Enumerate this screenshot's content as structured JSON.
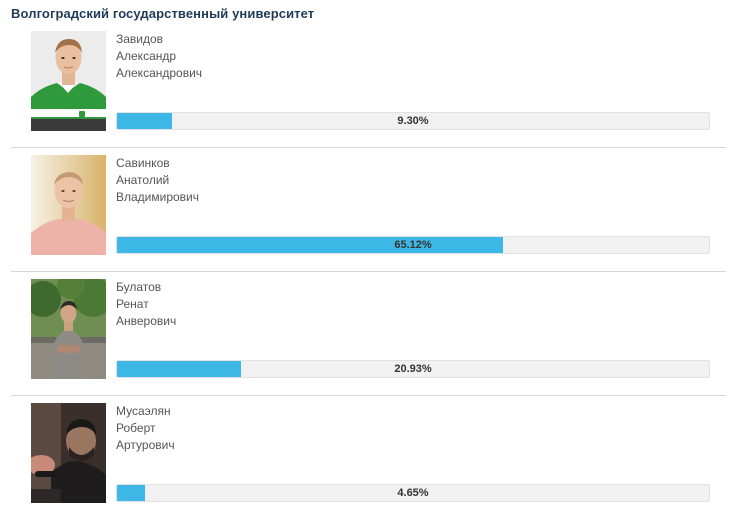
{
  "header": {
    "title": "Волгоградский государственный университет"
  },
  "candidates": [
    {
      "surname": "Завидов",
      "first_name": "Александр",
      "patronymic": "Александрович",
      "percent": 9.3,
      "percent_label": "9.30%"
    },
    {
      "surname": "Савинков",
      "first_name": "Анатолий",
      "patronymic": "Владимирович",
      "percent": 65.12,
      "percent_label": "65.12%"
    },
    {
      "surname": "Булатов",
      "first_name": "Ренат",
      "patronymic": "Анверович",
      "percent": 20.93,
      "percent_label": "20.93%"
    },
    {
      "surname": "Мусаэлян",
      "first_name": "Роберт",
      "patronymic": "Артурович",
      "percent": 4.65,
      "percent_label": "4.65%"
    }
  ],
  "colors": {
    "title": "#1f3b57",
    "bar_fill": "#3db8e6",
    "bar_track": "#f1f1f1"
  }
}
